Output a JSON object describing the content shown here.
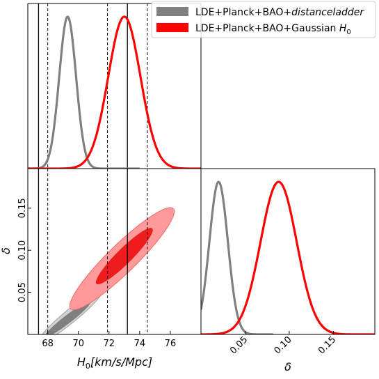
{
  "chart_data": {
    "type": "triangle-plot",
    "legend": {
      "placement": "top-right",
      "entries": [
        {
          "series": "distanceladder",
          "prefix": "LDE+Planck+BAO+",
          "suffix": "distanceladder",
          "suffix_style": "italic",
          "color": "#808080"
        },
        {
          "series": "gaussian",
          "prefix": "LDE+Planck+BAO+Gaussian ",
          "suffix": "H",
          "subscript": "0",
          "color": "#ff0000"
        }
      ]
    },
    "axes": {
      "H0": {
        "label_main": "H",
        "label_sub": "0",
        "label_unit": "[km/s/Mpc]",
        "range": [
          66.7,
          78.0
        ],
        "ticks": [
          68,
          70,
          72,
          74,
          76
        ],
        "tick_labels": [
          "68",
          "70",
          "72",
          "74",
          "76"
        ]
      },
      "delta": {
        "label": "δ",
        "range": [
          0.0,
          0.197
        ],
        "ticks": [
          0.05,
          0.1,
          0.15
        ],
        "tick_labels": [
          "0.05",
          "0.10",
          "0.15"
        ]
      }
    },
    "reference_lines": {
      "solid": [
        67.4,
        73.2
      ],
      "dashed": [
        68.0,
        71.9,
        74.5
      ]
    },
    "marginals": {
      "H0": [
        {
          "series": "distanceladder",
          "mean": 69.3,
          "sigma": 0.55,
          "color": "#808080"
        },
        {
          "series": "gaussian",
          "mean": 73.0,
          "sigma": 1.05,
          "color": "#ff0000"
        }
      ],
      "delta": [
        {
          "series": "distanceladder",
          "mean": 0.02,
          "sigma": 0.0105,
          "color": "#808080"
        },
        {
          "series": "gaussian",
          "mean": 0.088,
          "sigma": 0.0205,
          "color": "#ff0000"
        }
      ]
    },
    "contours": [
      {
        "series": "distanceladder",
        "outer": {
          "center": [
            69.5,
            0.022
          ],
          "half_axis": [
            [
              2.1,
              0.031
            ],
            [
              -0.2,
              0.007
            ]
          ],
          "color": "#d3d3d3",
          "edge": "#9e9e9e"
        },
        "inner": {
          "center": [
            69.3,
            0.018
          ],
          "half_axis": [
            [
              1.5,
              0.021
            ],
            [
              -0.15,
              0.004
            ]
          ],
          "color": "#7f7f7f"
        }
      },
      {
        "series": "gaussian",
        "outer": {
          "center": [
            72.85,
            0.09
          ],
          "half_axis": [
            [
              3.4,
              0.058
            ],
            [
              -0.3,
              0.018
            ]
          ],
          "color": "#ff9a9a",
          "edge": "#f06a6a"
        },
        "inner": {
          "center": [
            73.0,
            0.093
          ],
          "half_axis": [
            [
              1.85,
              0.032
            ],
            [
              -0.15,
              0.01
            ]
          ],
          "color": "#ee1c1c"
        }
      }
    ]
  }
}
